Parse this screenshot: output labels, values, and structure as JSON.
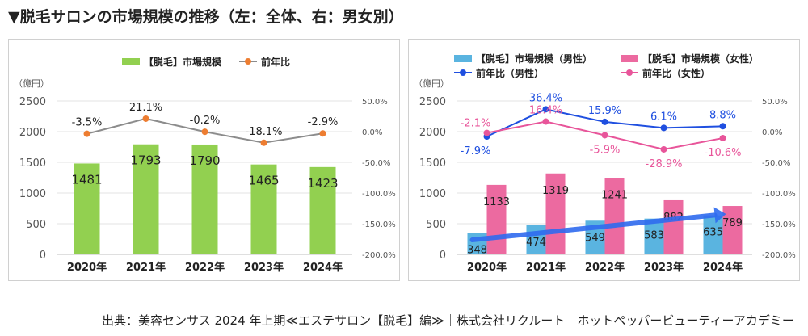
{
  "heading": "▼脱毛サロンの市場規模の推移（左：全体、右：男女別）",
  "source": "出典：美容センサス 2024 年上期≪エステサロン【脱毛】編≫｜株式会社リクルート　ホットペッパービューティーアカデミー",
  "chart_data": [
    {
      "type": "bar",
      "categories": [
        "2020年",
        "2021年",
        "2022年",
        "2023年",
        "2024年"
      ],
      "unit_label": "（億円）",
      "ylim": [
        0,
        2500
      ],
      "yticks": [
        "0",
        "500",
        "1000",
        "1500",
        "2000",
        "2500"
      ],
      "y2lim": [
        -200,
        50
      ],
      "y2ticks": [
        "-200.0%",
        "-150.0%",
        "-100.0%",
        "-50.0%",
        "0.0%",
        "50.0%"
      ],
      "series": [
        {
          "name": "【脱毛】市場規模",
          "kind": "bar",
          "axis": "left",
          "color": "#92d050",
          "values": [
            1481,
            1793,
            1790,
            1465,
            1423
          ],
          "labels": [
            "1481",
            "1793",
            "1790",
            "1465",
            "1423"
          ]
        }
      ],
      "lines": [
        {
          "name": "前年比",
          "kind": "line",
          "axis": "right",
          "color": "#8c8c8c",
          "marker_color": "#ed7d31",
          "values": [
            -3.5,
            21.1,
            -0.2,
            -18.1,
            -2.9
          ],
          "labels": [
            "-3.5%",
            "21.1%",
            "-0.2%",
            "-18.1%",
            "-2.9%"
          ]
        }
      ]
    },
    {
      "type": "bar",
      "categories": [
        "2020年",
        "2021年",
        "2022年",
        "2023年",
        "2024年"
      ],
      "unit_label": "（億円）",
      "ylim": [
        0,
        2500
      ],
      "yticks": [
        "0",
        "500",
        "1000",
        "1500",
        "2000",
        "2500"
      ],
      "y2lim": [
        -200,
        50
      ],
      "y2ticks": [
        "-200.0%",
        "-150.0%",
        "-100.0%",
        "-50.0%",
        "0.0%",
        "50.0%"
      ],
      "series": [
        {
          "name": "【脱毛】市場規模（男性）",
          "kind": "bar",
          "axis": "left",
          "color": "#5ab4e0",
          "values": [
            348,
            474,
            549,
            583,
            635
          ],
          "labels": [
            "348",
            "474",
            "549",
            "583",
            "635"
          ]
        },
        {
          "name": "【脱毛】市場規模（女性）",
          "kind": "bar",
          "axis": "left",
          "color": "#ec6aa0",
          "values": [
            1133,
            1319,
            1241,
            882,
            789
          ],
          "labels": [
            "1133",
            "1319",
            "1241",
            "882",
            "789"
          ]
        }
      ],
      "lines": [
        {
          "name": "前年比（男性）",
          "kind": "line",
          "axis": "right",
          "color": "#1f4fe0",
          "marker_color": "#1f4fe0",
          "values": [
            -7.9,
            36.4,
            15.9,
            6.1,
            8.8
          ],
          "labels": [
            "-7.9%",
            "36.4%",
            "15.9%",
            "6.1%",
            "8.8%"
          ]
        },
        {
          "name": "前年比（女性）",
          "kind": "line",
          "axis": "right",
          "color": "#e8559a",
          "marker_color": "#e8559a",
          "values": [
            -2.1,
            16.4,
            -5.9,
            -28.9,
            -10.6
          ],
          "labels": [
            "-2.1%",
            "16.4%",
            "-5.9%",
            "-28.9%",
            "-10.6%"
          ]
        }
      ],
      "trend_arrow": {
        "color": "#2f6bef",
        "from_category": "2020年",
        "to_category": "2024年"
      }
    }
  ]
}
